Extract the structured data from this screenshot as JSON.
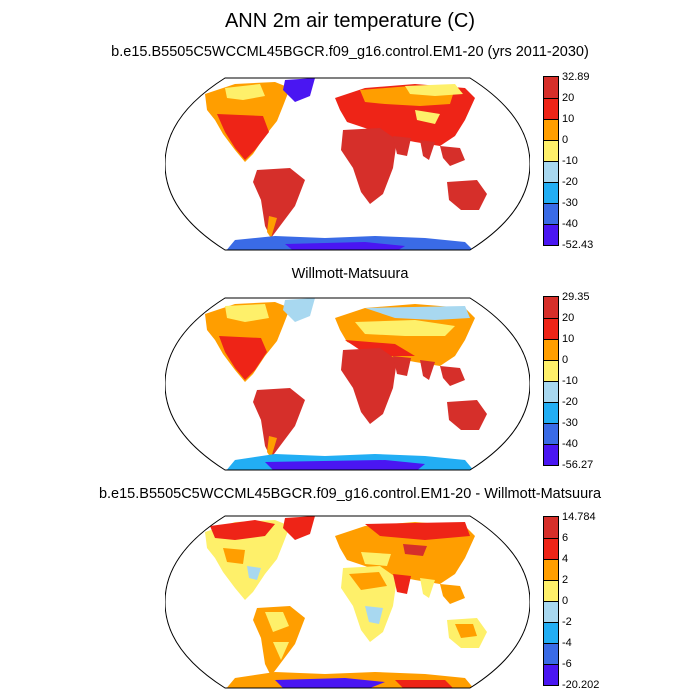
{
  "figure": {
    "title": "ANN 2m air temperature (C)"
  },
  "panels": [
    {
      "title": "b.e15.B5505C5WCCML45BGCR.f09_g16.control.EM1-20 (yrs 2011-2030)",
      "colorbar": {
        "colors": [
          "#d62f2a",
          "#ee2417",
          "#ff9e00",
          "#fef06a",
          "#a8d8f0",
          "#22aef4",
          "#3a6be6",
          "#4a16f2"
        ],
        "labels": [
          "32.89",
          "20",
          "10",
          "0",
          "-10",
          "-20",
          "-30",
          "-40",
          "-52.43"
        ]
      }
    },
    {
      "title": "Willmott-Matsuura",
      "colorbar": {
        "colors": [
          "#d62f2a",
          "#ee2417",
          "#ff9e00",
          "#fef06a",
          "#a8d8f0",
          "#22aef4",
          "#3a6be6",
          "#4a16f2"
        ],
        "labels": [
          "29.35",
          "20",
          "10",
          "0",
          "-10",
          "-20",
          "-30",
          "-40",
          "-56.27"
        ]
      }
    },
    {
      "title": "b.e15.B5505C5WCCML45BGCR.f09_g16.control.EM1-20 - Willmott-Matsuura",
      "colorbar": {
        "colors": [
          "#d62f2a",
          "#ee2417",
          "#ff9e00",
          "#fef06a",
          "#a8d8f0",
          "#22aef4",
          "#3a6be6",
          "#4a16f2"
        ],
        "labels": [
          "14.784",
          "6",
          "4",
          "2",
          "0",
          "-2",
          "-4",
          "-6",
          "-20.202"
        ]
      }
    }
  ]
}
